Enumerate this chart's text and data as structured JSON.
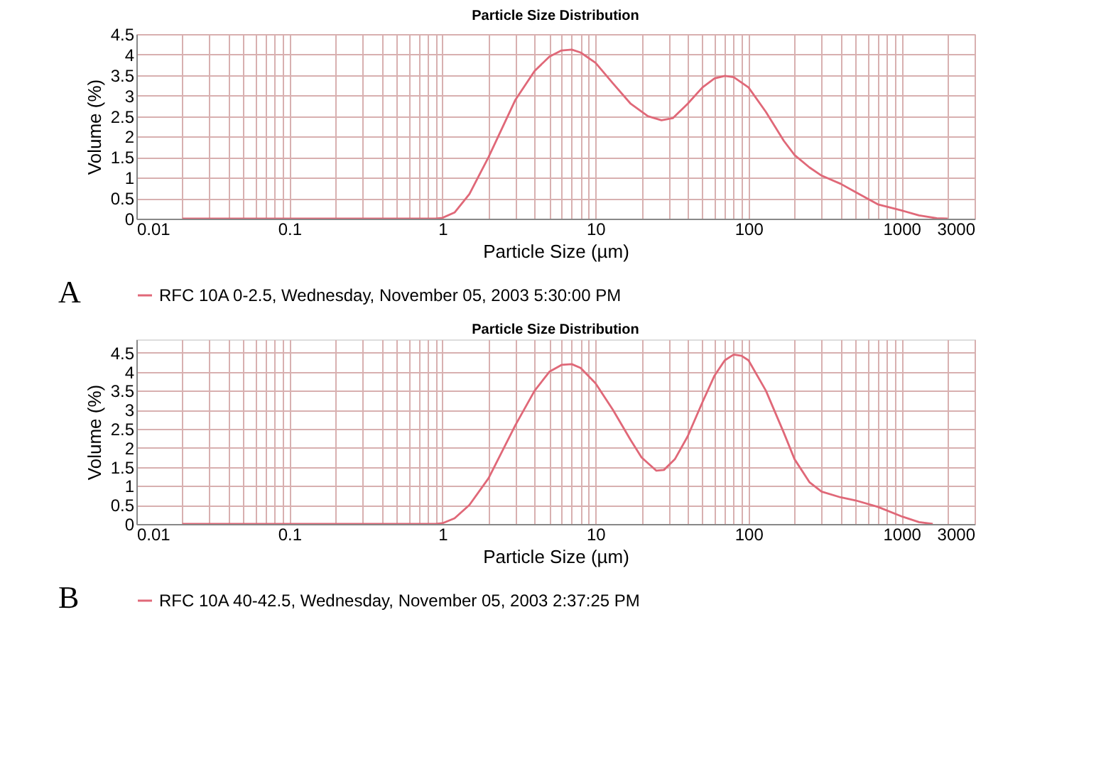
{
  "chart_data": [
    {
      "type": "line",
      "title": "Particle Size Distribution",
      "xlabel": "Particle Size (µm)",
      "ylabel": "Volume (%)",
      "log": "x",
      "grid": true,
      "legend": "bottom",
      "annotations": [
        "A"
      ],
      "xlim": [
        0.01,
        3000
      ],
      "ylim": [
        0,
        4.5
      ],
      "xticks": [
        0.01,
        {
          "value": 0.02,
          "label": null
        },
        {
          "value": 0.03,
          "label": null
        },
        {
          "value": 0.04,
          "label": null
        },
        {
          "value": 0.05,
          "label": null
        },
        {
          "value": 0.06,
          "label": null
        },
        {
          "value": 0.07,
          "label": null
        },
        {
          "value": 0.08,
          "label": null
        },
        {
          "value": 0.09,
          "label": null
        },
        0.1,
        {
          "value": 0.2,
          "label": null
        },
        {
          "value": 0.3,
          "label": null
        },
        {
          "value": 0.4,
          "label": null
        },
        {
          "value": 0.5,
          "label": null
        },
        {
          "value": 0.6,
          "label": null
        },
        {
          "value": 0.7,
          "label": null
        },
        {
          "value": 0.8,
          "label": null
        },
        {
          "value": 0.9,
          "label": null
        },
        1,
        {
          "value": 2,
          "label": null
        },
        {
          "value": 3,
          "label": null
        },
        {
          "value": 4,
          "label": null
        },
        {
          "value": 5,
          "label": null
        },
        {
          "value": 6,
          "label": null
        },
        {
          "value": 7,
          "label": null
        },
        {
          "value": 8,
          "label": null
        },
        {
          "value": 9,
          "label": null
        },
        10,
        {
          "value": 20,
          "label": null
        },
        {
          "value": 30,
          "label": null
        },
        {
          "value": 40,
          "label": null
        },
        {
          "value": 50,
          "label": null
        },
        {
          "value": 60,
          "label": null
        },
        {
          "value": 70,
          "label": null
        },
        {
          "value": 80,
          "label": null
        },
        {
          "value": 90,
          "label": null
        },
        100,
        {
          "value": 200,
          "label": null
        },
        {
          "value": 300,
          "label": null
        },
        {
          "value": 400,
          "label": null
        },
        {
          "value": 500,
          "label": null
        },
        {
          "value": 600,
          "label": null
        },
        {
          "value": 700,
          "label": null
        },
        {
          "value": 800,
          "label": null
        },
        {
          "value": 900,
          "label": null
        },
        1000,
        {
          "value": 2000,
          "label": null
        },
        3000
      ],
      "yticks": [
        0,
        0.5,
        1,
        1.5,
        2,
        2.5,
        3,
        3.5,
        4,
        4.5
      ],
      "series": [
        {
          "name": "RFC 10A 0-2.5, Wednesday, November 05, 2003 5:30:00 PM",
          "color": "#e06878",
          "x": [
            0.02,
            0.1,
            0.5,
            0.9,
            1,
            1.2,
            1.5,
            2,
            3,
            4,
            5,
            6,
            7,
            8,
            10,
            13,
            17,
            22,
            27,
            32,
            40,
            50,
            60,
            70,
            80,
            100,
            130,
            170,
            200,
            250,
            300,
            400,
            500,
            700,
            1000,
            1300,
            1700,
            2000
          ],
          "values": [
            0,
            0,
            0,
            0,
            0.02,
            0.15,
            0.6,
            1.5,
            2.9,
            3.6,
            3.95,
            4.1,
            4.12,
            4.05,
            3.8,
            3.3,
            2.8,
            2.5,
            2.4,
            2.45,
            2.8,
            3.2,
            3.42,
            3.48,
            3.45,
            3.2,
            2.6,
            1.9,
            1.55,
            1.25,
            1.05,
            0.85,
            0.65,
            0.35,
            0.2,
            0.08,
            0.01,
            0
          ]
        }
      ]
    },
    {
      "type": "line",
      "title": "Particle Size Distribution",
      "xlabel": "Particle Size (µm)",
      "ylabel": "Volume (%)",
      "log": "x",
      "grid": true,
      "legend": "bottom",
      "annotations": [
        "B"
      ],
      "xlim": [
        0.01,
        3000
      ],
      "ylim": [
        0,
        4.85
      ],
      "xticks": [
        0.01,
        {
          "value": 0.02,
          "label": null
        },
        {
          "value": 0.03,
          "label": null
        },
        {
          "value": 0.04,
          "label": null
        },
        {
          "value": 0.05,
          "label": null
        },
        {
          "value": 0.06,
          "label": null
        },
        {
          "value": 0.07,
          "label": null
        },
        {
          "value": 0.08,
          "label": null
        },
        {
          "value": 0.09,
          "label": null
        },
        0.1,
        {
          "value": 0.2,
          "label": null
        },
        {
          "value": 0.3,
          "label": null
        },
        {
          "value": 0.4,
          "label": null
        },
        {
          "value": 0.5,
          "label": null
        },
        {
          "value": 0.6,
          "label": null
        },
        {
          "value": 0.7,
          "label": null
        },
        {
          "value": 0.8,
          "label": null
        },
        {
          "value": 0.9,
          "label": null
        },
        1,
        {
          "value": 2,
          "label": null
        },
        {
          "value": 3,
          "label": null
        },
        {
          "value": 4,
          "label": null
        },
        {
          "value": 5,
          "label": null
        },
        {
          "value": 6,
          "label": null
        },
        {
          "value": 7,
          "label": null
        },
        {
          "value": 8,
          "label": null
        },
        {
          "value": 9,
          "label": null
        },
        10,
        {
          "value": 20,
          "label": null
        },
        {
          "value": 30,
          "label": null
        },
        {
          "value": 40,
          "label": null
        },
        {
          "value": 50,
          "label": null
        },
        {
          "value": 60,
          "label": null
        },
        {
          "value": 70,
          "label": null
        },
        {
          "value": 80,
          "label": null
        },
        {
          "value": 90,
          "label": null
        },
        100,
        {
          "value": 200,
          "label": null
        },
        {
          "value": 300,
          "label": null
        },
        {
          "value": 400,
          "label": null
        },
        {
          "value": 500,
          "label": null
        },
        {
          "value": 600,
          "label": null
        },
        {
          "value": 700,
          "label": null
        },
        {
          "value": 800,
          "label": null
        },
        {
          "value": 900,
          "label": null
        },
        1000,
        {
          "value": 2000,
          "label": null
        },
        3000
      ],
      "yticks": [
        0,
        0.5,
        1,
        1.5,
        2,
        2.5,
        3,
        3.5,
        4,
        4.5
      ],
      "series": [
        {
          "name": "RFC 10A 40-42.5, Wednesday, November 05, 2003 2:37:25 PM",
          "color": "#e06878",
          "x": [
            0.02,
            0.1,
            0.5,
            0.9,
            1,
            1.2,
            1.5,
            2,
            3,
            4,
            5,
            6,
            7,
            8,
            10,
            13,
            17,
            20,
            25,
            28,
            33,
            40,
            50,
            60,
            70,
            80,
            90,
            100,
            130,
            170,
            200,
            250,
            300,
            400,
            500,
            700,
            1000,
            1300,
            1600
          ],
          "values": [
            0,
            0,
            0,
            0,
            0.02,
            0.15,
            0.5,
            1.2,
            2.6,
            3.5,
            4.0,
            4.18,
            4.2,
            4.1,
            3.7,
            3.0,
            2.2,
            1.75,
            1.4,
            1.42,
            1.7,
            2.3,
            3.2,
            3.9,
            4.3,
            4.45,
            4.42,
            4.3,
            3.5,
            2.4,
            1.7,
            1.1,
            0.85,
            0.7,
            0.62,
            0.45,
            0.2,
            0.05,
            0
          ]
        }
      ]
    }
  ]
}
